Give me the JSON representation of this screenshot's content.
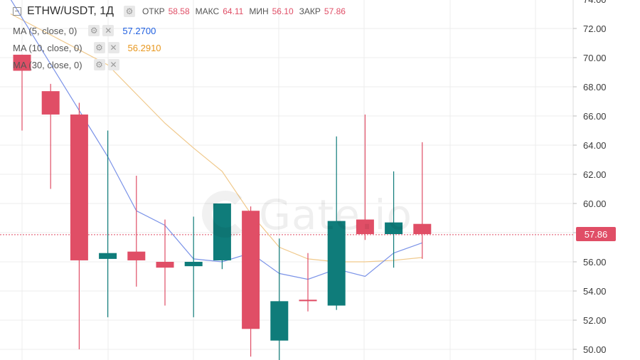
{
  "header": {
    "symbol": "ETHW/USDT, 1Д",
    "open_label": "ОТКР",
    "open_value": "58.58",
    "high_label": "МАКС",
    "high_value": "64.11",
    "low_label": "МИН",
    "low_value": "56.10",
    "close_label": "ЗАКР",
    "close_value": "57.86",
    "settings_icon": "gear-icon",
    "collapse_icon": "collapse-icon"
  },
  "indicators": [
    {
      "name": "MA (5, close, 0)",
      "value": "57.2700",
      "color": "#1f5fe0"
    },
    {
      "name": "MA (10, close, 0)",
      "value": "56.2910",
      "color": "#e8971e"
    },
    {
      "name": "MA (30, close, 0)",
      "value": "",
      "color": "#888888"
    }
  ],
  "watermark": "Gate.io",
  "last_price": "57.86",
  "colors": {
    "up": "#0f7c7a",
    "down": "#e04e66",
    "ma5": "#7b93e8",
    "ma10": "#f0c98c",
    "grid": "#ececec"
  },
  "chart_data": {
    "type": "candlestick",
    "y_ticks": [
      "72.00",
      "70.00",
      "68.00",
      "66.00",
      "64.00",
      "62.00",
      "60.00",
      "58.00",
      "56.00",
      "54.00",
      "52.00",
      "50.00"
    ],
    "ylim": [
      49.5,
      74.3
    ],
    "candles": [
      {
        "o": 70.2,
        "h": 70.2,
        "l": 65.0,
        "c": 69.1
      },
      {
        "o": 67.7,
        "h": 68.2,
        "l": 61.0,
        "c": 66.1
      },
      {
        "o": 66.1,
        "h": 66.9,
        "l": 50.0,
        "c": 56.1
      },
      {
        "o": 56.2,
        "h": 65.0,
        "l": 52.2,
        "c": 56.6
      },
      {
        "o": 56.7,
        "h": 61.9,
        "l": 54.3,
        "c": 56.1
      },
      {
        "o": 56.0,
        "h": 58.9,
        "l": 53.0,
        "c": 55.6
      },
      {
        "o": 55.7,
        "h": 59.1,
        "l": 52.2,
        "c": 56.0
      },
      {
        "o": 56.1,
        "h": 60.0,
        "l": 55.5,
        "c": 60.0
      },
      {
        "o": 59.5,
        "h": 59.8,
        "l": 49.5,
        "c": 51.4
      },
      {
        "o": 50.6,
        "h": 57.6,
        "l": 49.2,
        "c": 53.3
      },
      {
        "o": 53.4,
        "h": 56.6,
        "l": 52.6,
        "c": 53.3
      },
      {
        "o": 53.0,
        "h": 64.6,
        "l": 52.7,
        "c": 58.8
      },
      {
        "o": 58.9,
        "h": 66.1,
        "l": 57.5,
        "c": 57.9
      },
      {
        "o": 57.9,
        "h": 62.2,
        "l": 55.6,
        "c": 58.7
      },
      {
        "o": 58.6,
        "h": 64.2,
        "l": 56.2,
        "c": 57.9
      }
    ],
    "ma5": [
      null,
      null,
      null,
      63.2,
      59.5,
      58.5,
      56.2,
      56.0,
      56.6,
      55.2,
      54.8,
      55.5,
      55.0,
      56.6,
      57.3
    ],
    "ma10": [
      null,
      null,
      null,
      69.5,
      67.5,
      65.5,
      63.8,
      62.2,
      59.3,
      57.0,
      56.2,
      56.0,
      56.0,
      56.1,
      56.3
    ],
    "ma5_prefix": [
      74.0
    ],
    "ma10_prefix": [
      73.0
    ],
    "grid": true
  }
}
